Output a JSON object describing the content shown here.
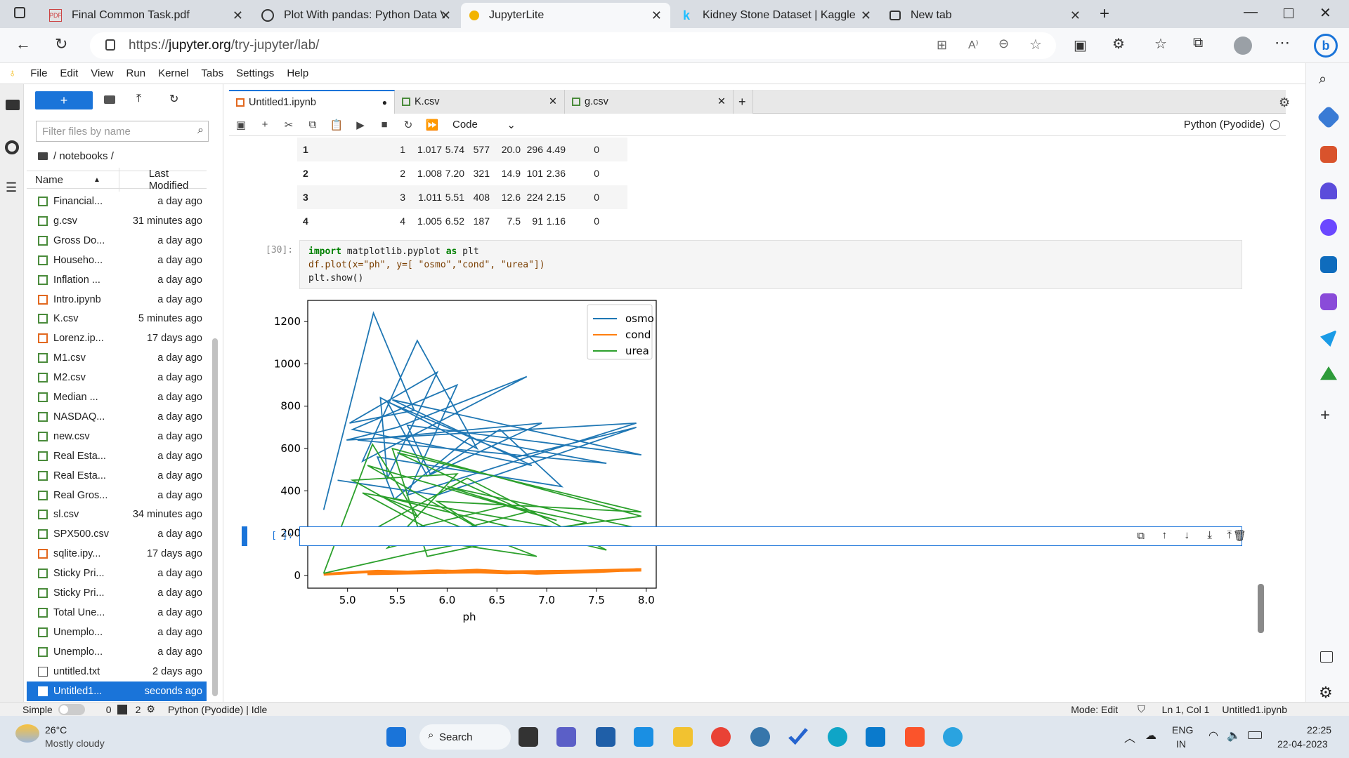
{
  "browser": {
    "tabs": [
      {
        "title": "Final Common Task.pdf",
        "icon": "pdf-icon"
      },
      {
        "title": "Plot With pandas: Python Data V",
        "icon": "realpython-icon"
      },
      {
        "title": "JupyterLite",
        "icon": "jupyter-icon",
        "active": true
      },
      {
        "title": "Kidney Stone Dataset | Kaggle",
        "icon": "kaggle-icon"
      },
      {
        "title": "New tab",
        "icon": "newtab-icon"
      }
    ],
    "url_prefix": "https://",
    "url_host": "jupyter.org",
    "url_path": "/try-jupyter/lab/"
  },
  "menu": [
    "File",
    "Edit",
    "View",
    "Run",
    "Kernel",
    "Tabs",
    "Settings",
    "Help"
  ],
  "filebrowser": {
    "new_label": "+",
    "filter_placeholder": "Filter files by name",
    "breadcrumb": "/ notebooks /",
    "col_name": "Name",
    "col_modified": "Last Modified",
    "files": [
      {
        "name": "Financial...",
        "modified": "a day ago",
        "type": "csv"
      },
      {
        "name": "g.csv",
        "modified": "31 minutes ago",
        "type": "csv"
      },
      {
        "name": "Gross Do...",
        "modified": "a day ago",
        "type": "csv"
      },
      {
        "name": "Househo...",
        "modified": "a day ago",
        "type": "csv"
      },
      {
        "name": "Inflation ...",
        "modified": "a day ago",
        "type": "csv"
      },
      {
        "name": "Intro.ipynb",
        "modified": "a day ago",
        "type": "nb"
      },
      {
        "name": "K.csv",
        "modified": "5 minutes ago",
        "type": "csv"
      },
      {
        "name": "Lorenz.ip...",
        "modified": "17 days ago",
        "type": "nb"
      },
      {
        "name": "M1.csv",
        "modified": "a day ago",
        "type": "csv"
      },
      {
        "name": "M2.csv",
        "modified": "a day ago",
        "type": "csv"
      },
      {
        "name": "Median ...",
        "modified": "a day ago",
        "type": "csv"
      },
      {
        "name": "NASDAQ...",
        "modified": "a day ago",
        "type": "csv"
      },
      {
        "name": "new.csv",
        "modified": "a day ago",
        "type": "csv"
      },
      {
        "name": "Real Esta...",
        "modified": "a day ago",
        "type": "csv"
      },
      {
        "name": "Real Esta...",
        "modified": "a day ago",
        "type": "csv"
      },
      {
        "name": "Real Gros...",
        "modified": "a day ago",
        "type": "csv"
      },
      {
        "name": "sl.csv",
        "modified": "34 minutes ago",
        "type": "csv"
      },
      {
        "name": "SPX500.csv",
        "modified": "a day ago",
        "type": "csv"
      },
      {
        "name": "sqlite.ipy...",
        "modified": "17 days ago",
        "type": "nb"
      },
      {
        "name": "Sticky Pri...",
        "modified": "a day ago",
        "type": "csv"
      },
      {
        "name": "Sticky Pri...",
        "modified": "a day ago",
        "type": "csv"
      },
      {
        "name": "Total Une...",
        "modified": "a day ago",
        "type": "csv"
      },
      {
        "name": "Unemplo...",
        "modified": "a day ago",
        "type": "csv"
      },
      {
        "name": "Unemplo...",
        "modified": "a day ago",
        "type": "csv"
      },
      {
        "name": "untitled.txt",
        "modified": "2 days ago",
        "type": "txt"
      },
      {
        "name": "Untitled1...",
        "modified": "seconds ago",
        "type": "nb",
        "selected": true
      }
    ]
  },
  "doctabs": [
    {
      "title": "Untitled1.ipynb",
      "active": true
    },
    {
      "title": "K.csv"
    },
    {
      "title": "g.csv"
    }
  ],
  "notebook": {
    "cell_type": "Code",
    "kernel": "Python (Pyodide)",
    "table_rows": [
      [
        "1",
        "1",
        "1.017",
        "5.74",
        "577",
        "20.0",
        "296",
        "4.49",
        "0"
      ],
      [
        "2",
        "2",
        "1.008",
        "7.20",
        "321",
        "14.9",
        "101",
        "2.36",
        "0"
      ],
      [
        "3",
        "3",
        "1.011",
        "5.51",
        "408",
        "12.6",
        "224",
        "2.15",
        "0"
      ],
      [
        "4",
        "4",
        "1.005",
        "6.52",
        "187",
        "7.5",
        "91",
        "1.16",
        "0"
      ]
    ],
    "cell_prompt": "[30]:",
    "code_line1_a": "import",
    "code_line1_b": " matplotlib.pyplot ",
    "code_line1_c": "as",
    "code_line1_d": " plt",
    "code_line2": "df.plot(x=\"ph\", y=[ \"osmo\",\"cond\", \"urea\"])",
    "code_line3": "plt.show()",
    "empty_prompt": "[ ]:"
  },
  "chart_data": {
    "type": "line",
    "xlabel": "ph",
    "xticks": [
      "5.0",
      "5.5",
      "6.0",
      "6.5",
      "7.0",
      "7.5",
      "8.0"
    ],
    "yticks": [
      "0",
      "200",
      "400",
      "600",
      "800",
      "1000",
      "1200"
    ],
    "xlim": [
      4.6,
      8.1
    ],
    "ylim": [
      -60,
      1300
    ],
    "legend_position": "upper right",
    "series": [
      {
        "name": "osmo",
        "color": "#1f77b4",
        "x": [
          4.76,
          5.26,
          5.67,
          5.02,
          5.9,
          5.4,
          5.33,
          6.3,
          5.7,
          5.15,
          6.8,
          5.5,
          4.99,
          7.9,
          5.6,
          6.1,
          5.05,
          6.85,
          5.45,
          7.95,
          5.6,
          5.83,
          6.53,
          7.15,
          5.3,
          5.47,
          6.22,
          7.6,
          6.0,
          5.1,
          6.95,
          5.8,
          5.4,
          6.7,
          7.9,
          5.9,
          4.9
        ],
        "y": [
          310,
          1240,
          780,
          720,
          960,
          460,
          840,
          600,
          1110,
          540,
          940,
          700,
          640,
          720,
          380,
          900,
          690,
          520,
          830,
          570,
          710,
          480,
          690,
          420,
          560,
          360,
          650,
          530,
          600,
          640,
          720,
          470,
          820,
          560,
          700,
          380,
          450
        ]
      },
      {
        "name": "cond",
        "color": "#ff7f0e",
        "x": [
          4.76,
          5.3,
          5.8,
          6.3,
          6.9,
          7.5,
          7.95,
          6.6,
          5.9,
          5.2,
          6.1,
          7.2,
          7.95
        ],
        "y": [
          5.5,
          20,
          14,
          25,
          10,
          18,
          28,
          12,
          22,
          8,
          15,
          20,
          25
        ]
      },
      {
        "name": "urea",
        "color": "#2ca02c",
        "x": [
          4.76,
          5.25,
          5.7,
          5.05,
          6.1,
          5.4,
          6.8,
          5.5,
          7.95,
          5.9,
          6.4,
          5.2,
          7.1,
          6.0,
          7.95,
          5.6,
          6.9,
          5.3,
          7.6,
          6.2,
          5.0,
          6.6,
          7.4,
          5.8,
          5.45,
          7.95,
          6.05,
          5.15,
          7.05,
          5.7,
          4.76
        ],
        "y": [
          10,
          620,
          280,
          450,
          480,
          130,
          300,
          580,
          300,
          350,
          200,
          520,
          260,
          420,
          220,
          180,
          90,
          380,
          120,
          460,
          150,
          330,
          250,
          90,
          600,
          280,
          160,
          390,
          230,
          110,
          10
        ]
      }
    ]
  },
  "status": {
    "mode_label": "Simple",
    "terminals": "0",
    "kernels": "2",
    "kernel_status": "Python (Pyodide) | Idle",
    "mode": "Mode: Edit",
    "position": "Ln 1, Col 1",
    "filename": "Untitled1.ipynb"
  },
  "taskbar": {
    "temperature": "26°C",
    "weather": "Mostly cloudy",
    "search": "Search",
    "lang1": "ENG",
    "lang2": "IN",
    "time": "22:25",
    "date": "22-04-2023"
  }
}
